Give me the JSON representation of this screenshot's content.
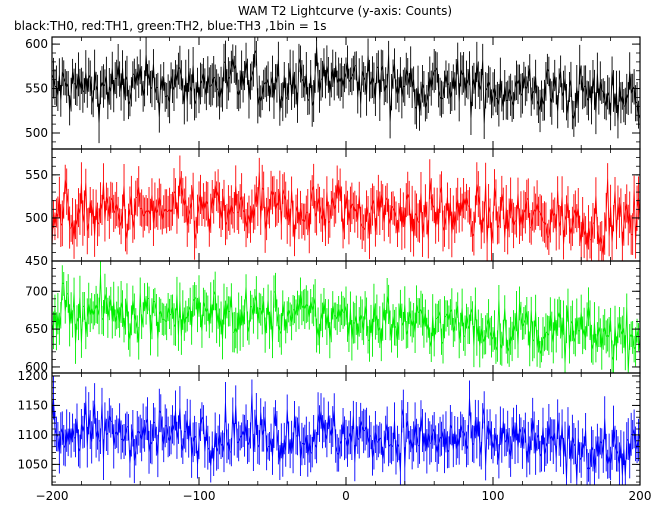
{
  "chart_data": {
    "type": "line",
    "title": "WAM T2 Lightcurve (y-axis: Counts)",
    "subtitle": "black:TH0, red:TH1, green:TH2, blue:TH3 ,1bin = 1s",
    "x_range": [
      -200,
      200
    ],
    "x_ticks": [
      -200,
      -100,
      0,
      100,
      200
    ],
    "x_tick_labels": [
      "−200",
      "−100",
      "0",
      "100",
      "200"
    ],
    "bin_size": 1,
    "grid": false,
    "panels": [
      {
        "series_name": "TH0",
        "color": "#000000",
        "ylim": [
          482,
          608
        ],
        "y_ticks": [
          500,
          550,
          600
        ],
        "y_tick_labels": [
          "500",
          "550",
          "600"
        ],
        "trend": [
          [
            -200,
            550
          ],
          [
            0,
            560
          ],
          [
            200,
            540
          ]
        ],
        "noise": 55
      },
      {
        "series_name": "TH1",
        "color": "#ff0000",
        "ylim": [
          450,
          580
        ],
        "y_ticks": [
          450,
          500,
          550
        ],
        "y_tick_labels": [
          "450",
          "500",
          "550"
        ],
        "trend": [
          [
            -200,
            505
          ],
          [
            0,
            510
          ],
          [
            200,
            495
          ]
        ],
        "noise": 60
      },
      {
        "series_name": "TH2",
        "color": "#00ee00",
        "ylim": [
          592,
          740
        ],
        "y_ticks": [
          600,
          650,
          700
        ],
        "y_tick_labels": [
          "600",
          "650",
          "700"
        ],
        "trend": [
          [
            -200,
            675
          ],
          [
            0,
            665
          ],
          [
            200,
            640
          ]
        ],
        "noise": 62
      },
      {
        "series_name": "TH3",
        "color": "#0000ff",
        "ylim": [
          1015,
          1205
        ],
        "y_ticks": [
          1050,
          1100,
          1150,
          1200
        ],
        "y_tick_labels": [
          "1050",
          "1100",
          "1150",
          "1200"
        ],
        "trend": [
          [
            -200,
            1105
          ],
          [
            0,
            1100
          ],
          [
            200,
            1075
          ]
        ],
        "noise": 85
      }
    ]
  }
}
